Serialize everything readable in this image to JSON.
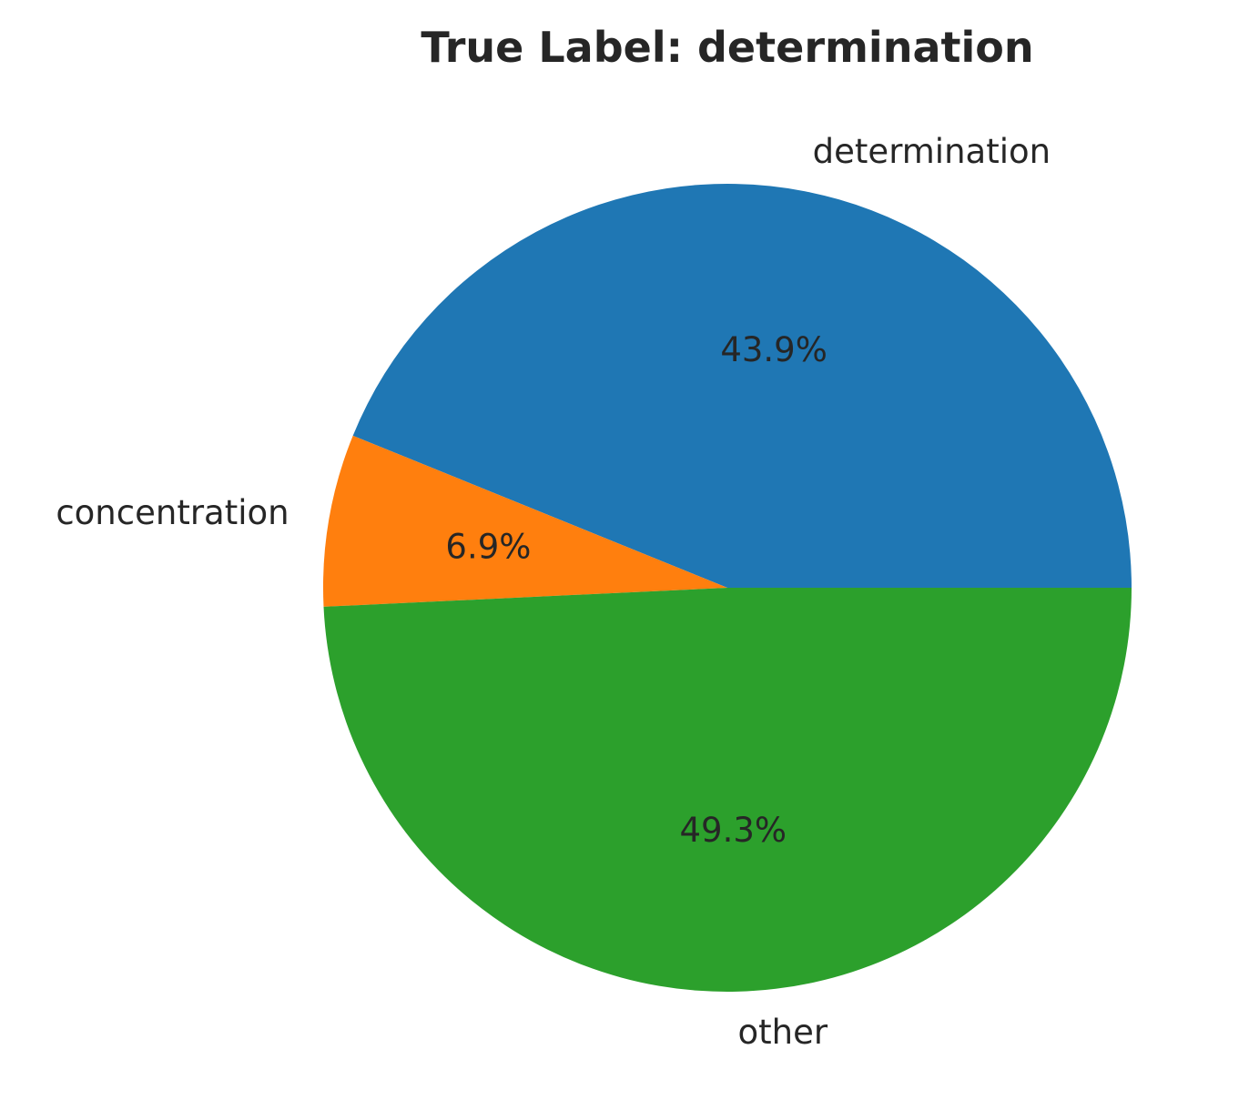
{
  "chart_data": {
    "type": "pie",
    "title": "True Label: determination",
    "slices": [
      {
        "label": "determination",
        "value": 43.9,
        "pct_label": "43.9%",
        "color": "#1f77b4"
      },
      {
        "label": "concentration",
        "value": 6.9,
        "pct_label": "6.9%",
        "color": "#ff7f0e"
      },
      {
        "label": "other",
        "value": 49.3,
        "pct_label": "49.3%",
        "color": "#2ca02c"
      }
    ],
    "start_angle_deg": 0,
    "direction": "counterclockwise"
  }
}
